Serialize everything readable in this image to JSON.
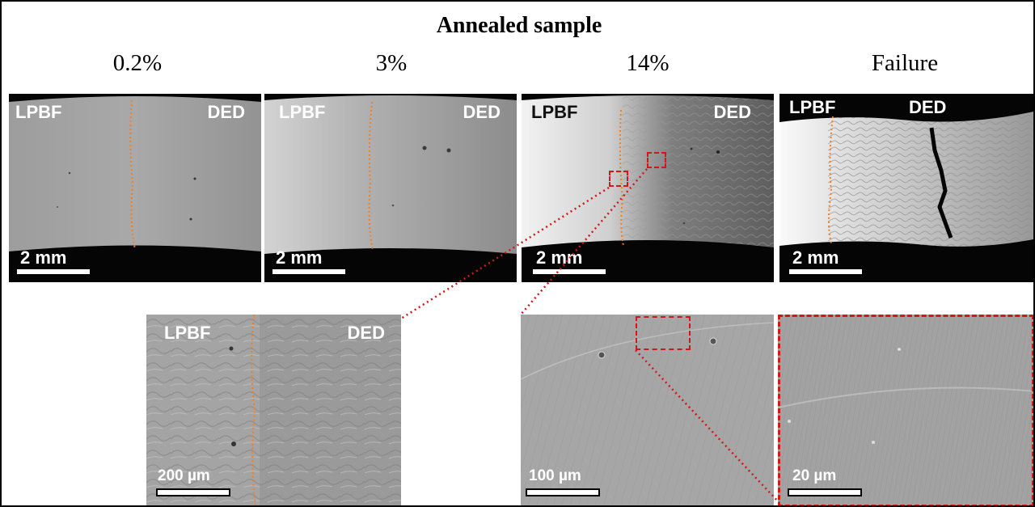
{
  "figure": {
    "title": "Annealed sample",
    "columns": [
      "0.2%",
      "3%",
      "14%",
      "Failure"
    ],
    "region_labels": {
      "left": "LPBF",
      "right": "DED"
    },
    "scale_bars": {
      "macro": "2 mm",
      "zoom1": "200 µm",
      "zoom2": "100 µm",
      "zoom3": "20 µm"
    },
    "colors": {
      "interface_line": "#f08020",
      "zoom_marker": "#d01818"
    }
  }
}
